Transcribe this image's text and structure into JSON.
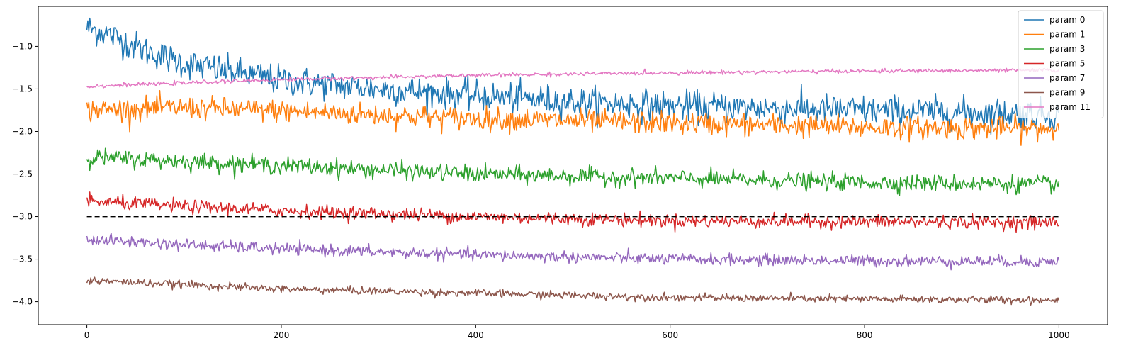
{
  "chart_data": {
    "type": "line",
    "title": "",
    "xlabel": "",
    "ylabel": "",
    "xlim": [
      -50,
      1050
    ],
    "ylim": [
      -4.27,
      -0.53
    ],
    "xticks": [
      {
        "value": 0,
        "label": "0"
      },
      {
        "value": 200,
        "label": "200"
      },
      {
        "value": 400,
        "label": "400"
      },
      {
        "value": 600,
        "label": "600"
      },
      {
        "value": 800,
        "label": "800"
      },
      {
        "value": 1000,
        "label": "1000"
      }
    ],
    "yticks": [
      {
        "value": -1.0,
        "label": "−1.0"
      },
      {
        "value": -1.5,
        "label": "−1.5"
      },
      {
        "value": -2.0,
        "label": "−2.0"
      },
      {
        "value": -2.5,
        "label": "−2.5"
      },
      {
        "value": -3.0,
        "label": "−3.0"
      },
      {
        "value": -3.5,
        "label": "−3.5"
      },
      {
        "value": -4.0,
        "label": "−4.0"
      }
    ],
    "grid": false,
    "legend_position": "top-right",
    "reference_line": {
      "y": -3.0,
      "x_range": [
        0,
        1000
      ],
      "style": "dashed",
      "color": "#000000"
    },
    "x_range": [
      0,
      1000
    ],
    "series": [
      {
        "name": "param 0",
        "color": "#1f77b4",
        "trend": [
          [
            0,
            -0.78
          ],
          [
            20,
            -0.85
          ],
          [
            60,
            -1.05
          ],
          [
            100,
            -1.2
          ],
          [
            200,
            -1.4
          ],
          [
            300,
            -1.5
          ],
          [
            400,
            -1.58
          ],
          [
            500,
            -1.65
          ],
          [
            600,
            -1.7
          ],
          [
            800,
            -1.75
          ],
          [
            1000,
            -1.8
          ]
        ],
        "noise": 0.16
      },
      {
        "name": "param 1",
        "color": "#ff7f0e",
        "trend": [
          [
            0,
            -1.75
          ],
          [
            100,
            -1.72
          ],
          [
            200,
            -1.76
          ],
          [
            400,
            -1.85
          ],
          [
            600,
            -1.9
          ],
          [
            800,
            -1.95
          ],
          [
            1000,
            -1.97
          ]
        ],
        "noise": 0.12
      },
      {
        "name": "param 3",
        "color": "#2ca02c",
        "trend": [
          [
            0,
            -2.3
          ],
          [
            100,
            -2.35
          ],
          [
            200,
            -2.4
          ],
          [
            400,
            -2.5
          ],
          [
            600,
            -2.55
          ],
          [
            800,
            -2.6
          ],
          [
            1000,
            -2.62
          ]
        ],
        "noise": 0.09
      },
      {
        "name": "param 5",
        "color": "#d62728",
        "trend": [
          [
            0,
            -2.82
          ],
          [
            100,
            -2.88
          ],
          [
            200,
            -2.93
          ],
          [
            400,
            -3.0
          ],
          [
            600,
            -3.05
          ],
          [
            800,
            -3.06
          ],
          [
            1000,
            -3.07
          ]
        ],
        "noise": 0.07
      },
      {
        "name": "param 7",
        "color": "#9467bd",
        "trend": [
          [
            0,
            -3.27
          ],
          [
            100,
            -3.33
          ],
          [
            200,
            -3.38
          ],
          [
            400,
            -3.45
          ],
          [
            600,
            -3.5
          ],
          [
            800,
            -3.52
          ],
          [
            1000,
            -3.53
          ]
        ],
        "noise": 0.06
      },
      {
        "name": "param 9",
        "color": "#8c564b",
        "trend": [
          [
            0,
            -3.75
          ],
          [
            100,
            -3.8
          ],
          [
            200,
            -3.85
          ],
          [
            400,
            -3.9
          ],
          [
            600,
            -3.95
          ],
          [
            800,
            -3.97
          ],
          [
            1000,
            -3.98
          ]
        ],
        "noise": 0.04
      },
      {
        "name": "param 11",
        "color": "#e377c2",
        "trend": [
          [
            0,
            -1.47
          ],
          [
            100,
            -1.43
          ],
          [
            200,
            -1.39
          ],
          [
            400,
            -1.34
          ],
          [
            600,
            -1.31
          ],
          [
            800,
            -1.29
          ],
          [
            1000,
            -1.28
          ]
        ],
        "noise": 0.02
      }
    ]
  }
}
